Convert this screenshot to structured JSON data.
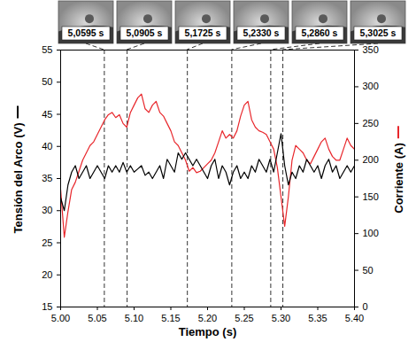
{
  "chart_data": {
    "type": "line",
    "xlabel": "Tiempo (s)",
    "ylabel": "Tensión del Arco (V)",
    "y2label": "Corriente (A)",
    "xlim": [
      5.0,
      5.4
    ],
    "xticks": [
      {
        "value": 5.0,
        "label": "5.00"
      },
      {
        "value": 5.05,
        "label": "5.05"
      },
      {
        "value": 5.1,
        "label": "5.10"
      },
      {
        "value": 5.15,
        "label": "5.15"
      },
      {
        "value": 5.2,
        "label": "5.20"
      },
      {
        "value": 5.25,
        "label": "5.25"
      },
      {
        "value": 5.3,
        "label": "5.30"
      },
      {
        "value": 5.35,
        "label": "5.35"
      },
      {
        "value": 5.4,
        "label": "5.40"
      }
    ],
    "ylim": [
      15,
      55
    ],
    "yticks": [
      15,
      20,
      25,
      30,
      35,
      40,
      45,
      50,
      55
    ],
    "y2lim": [
      0,
      350
    ],
    "y2ticks": [
      0,
      50,
      100,
      150,
      200,
      250,
      300,
      350
    ],
    "x": [
      5.0,
      5.005,
      5.01,
      5.015,
      5.02,
      5.025,
      5.03,
      5.035,
      5.04,
      5.045,
      5.05,
      5.055,
      5.06,
      5.065,
      5.07,
      5.075,
      5.08,
      5.085,
      5.09,
      5.095,
      5.1,
      5.105,
      5.11,
      5.115,
      5.12,
      5.125,
      5.13,
      5.135,
      5.14,
      5.145,
      5.15,
      5.155,
      5.16,
      5.165,
      5.17,
      5.175,
      5.18,
      5.185,
      5.19,
      5.195,
      5.2,
      5.205,
      5.21,
      5.215,
      5.22,
      5.225,
      5.23,
      5.235,
      5.24,
      5.245,
      5.25,
      5.255,
      5.26,
      5.265,
      5.27,
      5.275,
      5.28,
      5.285,
      5.29,
      5.295,
      5.3,
      5.305,
      5.31,
      5.315,
      5.32,
      5.325,
      5.33,
      5.335,
      5.34,
      5.345,
      5.35,
      5.355,
      5.36,
      5.365,
      5.37,
      5.375,
      5.38,
      5.385,
      5.39,
      5.395,
      5.4
    ],
    "series": [
      {
        "name": "Corriente (A)",
        "color": "#e8262b",
        "axis": "y2",
        "values": [
          160,
          95,
          130,
          160,
          170,
          185,
          200,
          210,
          220,
          225,
          235,
          245,
          255,
          262,
          265,
          258,
          262,
          250,
          245,
          265,
          275,
          285,
          290,
          270,
          265,
          275,
          280,
          265,
          260,
          250,
          240,
          225,
          220,
          210,
          200,
          185,
          190,
          183,
          185,
          190,
          195,
          200,
          210,
          225,
          240,
          230,
          235,
          230,
          240,
          260,
          275,
          280,
          255,
          245,
          240,
          238,
          235,
          225,
          215,
          190,
          150,
          110,
          150,
          200,
          220,
          215,
          210,
          200,
          195,
          205,
          215,
          225,
          230,
          215,
          205,
          200,
          200,
          215,
          230,
          220,
          215
        ]
      },
      {
        "name": "Tensión del Arco (V)",
        "color": "#000000",
        "values": [
          32,
          30,
          34,
          36,
          37,
          35,
          36,
          37,
          35,
          36,
          37,
          36,
          35,
          37,
          36,
          37,
          36,
          37.5,
          36,
          37,
          36,
          36.5,
          37,
          35.5,
          36,
          35,
          36,
          37,
          35,
          38,
          37,
          36,
          39,
          38,
          39,
          38,
          37,
          38,
          37,
          36,
          35,
          37,
          38,
          35,
          37,
          36,
          34,
          36,
          37,
          35,
          36,
          35,
          37,
          36,
          38,
          37,
          36,
          38,
          36,
          39,
          42,
          37,
          34,
          36,
          35,
          37,
          36,
          38,
          37,
          36,
          37,
          35,
          37,
          38,
          36,
          37,
          35,
          36,
          37,
          36,
          37
        ]
      }
    ],
    "annotations": [
      {
        "x": 5.0595,
        "label": "5,0595 s"
      },
      {
        "x": 5.0905,
        "label": "5,0905 s"
      },
      {
        "x": 5.1725,
        "label": "5,1725 s"
      },
      {
        "x": 5.233,
        "label": "5,2330 s"
      },
      {
        "x": 5.286,
        "label": "5,2860 s"
      },
      {
        "x": 5.3025,
        "label": "5,3025 s"
      }
    ]
  }
}
